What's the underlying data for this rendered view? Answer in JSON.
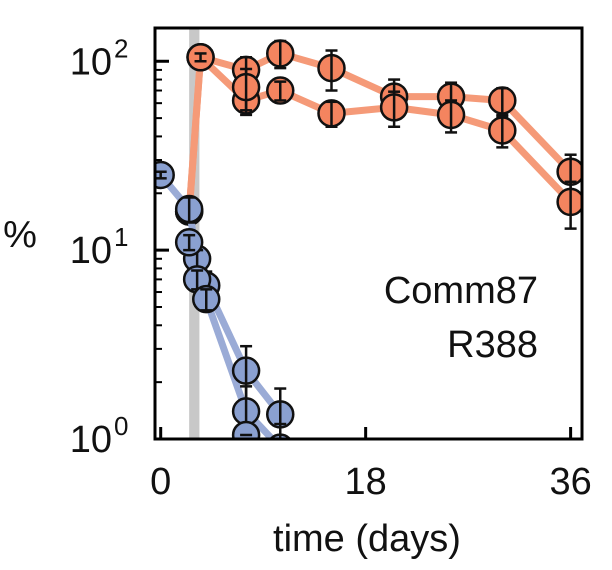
{
  "chart_data": {
    "type": "line",
    "xlabel": "time (days)",
    "ylabel": "%",
    "xscale": "linear",
    "yscale": "log",
    "xlim": [
      -0.5,
      37
    ],
    "ylim": [
      1,
      150
    ],
    "xticks": [
      {
        "value": 0,
        "label": "0"
      },
      {
        "value": 18,
        "label": "18"
      },
      {
        "value": 36,
        "label": "36"
      }
    ],
    "yticks": [
      {
        "value": 1,
        "base": "10",
        "exp": "0"
      },
      {
        "value": 10,
        "base": "10",
        "exp": "1"
      },
      {
        "value": 100,
        "base": "10",
        "exp": "2"
      }
    ],
    "shaded_interval": [
      2.5,
      3.4
    ],
    "annotation": [
      "Comm87",
      "R388"
    ],
    "series": [
      {
        "name": "Comm87",
        "color": "#f4845f",
        "lineColor": "#f59a78",
        "replicates": [
          {
            "x": [
              2.5,
              3.5,
              7.5,
              10.5,
              15,
              20.5,
              25.5,
              30,
              36
            ],
            "y": [
              16,
              105,
              90,
              110,
              92,
              65,
              65,
              62,
              26
            ],
            "err": [
              0,
              5,
              15,
              18,
              22,
              15,
              12,
              10,
              6
            ]
          },
          {
            "x": [
              2.5,
              3.5,
              7.5,
              10.5,
              15,
              20.5,
              25.5,
              30,
              36
            ],
            "y": [
              16,
              105,
              62,
              70,
              53,
              57,
              52,
              43,
              18
            ],
            "err": [
              0,
              5,
              10,
              8,
              8,
              12,
              10,
              8,
              5
            ]
          },
          {
            "x": [
              7.5
            ],
            "y": [
              73
            ],
            "err": [
              18
            ]
          }
        ]
      },
      {
        "name": "R388",
        "color": "#8aa0d0",
        "lineColor": "#9aabd6",
        "replicates": [
          {
            "x": [
              0,
              2.5,
              3.2,
              4,
              7.5,
              10.5
            ],
            "y": [
              25,
              16.5,
              9,
              6.5,
              2.3,
              1.35
            ],
            "err": [
              1,
              2.5,
              1,
              1.2,
              0.8,
              0.5
            ]
          },
          {
            "x": [
              2.5,
              3.2,
              4,
              7.5,
              10.5
            ],
            "y": [
              11,
              7,
              5.5,
              1.4,
              0.9
            ],
            "err": [
              1,
              0.8,
              0.7,
              0.5,
              0.3
            ]
          },
          {
            "x": [
              7.5
            ],
            "y": [
              1.05
            ],
            "err": [
              0
            ]
          }
        ]
      }
    ]
  }
}
